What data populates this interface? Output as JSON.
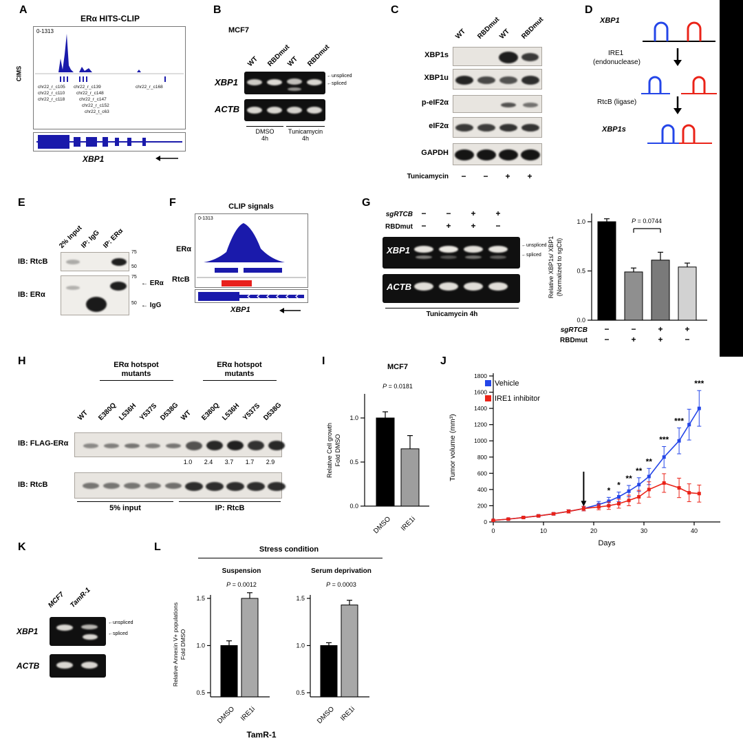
{
  "panels": {
    "A": {
      "letter": "A",
      "title": "ERα HITS-CLIP",
      "range": "0-1313",
      "axis": "CIMS",
      "cims": [
        "chr22_r_c105",
        "chr22_r_c110",
        "chr22_r_c118",
        "chr22_r_c139",
        "chr22_r_c148",
        "chr22_r_c147",
        "chr22_r_c152",
        "chr22_t_c63",
        "chr22_r_c168"
      ],
      "gene": "XBP1"
    },
    "B": {
      "letter": "B",
      "cell_line": "MCF7",
      "lanes": [
        "WT",
        "RBDmut",
        "WT",
        "RBDmut"
      ],
      "row1": "XBP1",
      "row2": "ACTB",
      "arrow_unspliced": "←unspliced",
      "arrow_spliced": "←spliced",
      "cond1": "DMSO",
      "cond1_time": "4h",
      "cond2": "Tunicamycin",
      "cond2_time": "4h"
    },
    "C": {
      "letter": "C",
      "lanes": [
        "WT",
        "RBDmut",
        "WT",
        "RBDmut"
      ],
      "rows": [
        "XBP1s",
        "XBP1u",
        "p-eIF2α",
        "eIF2α",
        "GAPDH"
      ],
      "treatment": "Tunicamycin",
      "signs": [
        "−",
        "−",
        "+",
        "+"
      ]
    },
    "D": {
      "letter": "D",
      "rna": "XBP1",
      "enzyme1": "IRE1",
      "enzyme1_note": "(endonuclease)",
      "enzyme2": "RtcB (ligase)",
      "product": "XBP1s"
    },
    "E": {
      "letter": "E",
      "lanes": [
        "2% Input",
        "IP: IgG",
        "IP: ERα"
      ],
      "blot1": "IB: RtcB",
      "blot2": "IB: ERα",
      "mw": [
        "75",
        "50"
      ],
      "arrow1": "← ERα",
      "arrow2": "← IgG"
    },
    "F": {
      "letter": "F",
      "title": "CLIP signals",
      "range": "0-1313",
      "track1": "ERα",
      "track2": "RtcB",
      "gene": "XBP1"
    },
    "G": {
      "letter": "G",
      "row_sg": "sgRTCB",
      "sg_signs": [
        "−",
        "−",
        "+",
        "+"
      ],
      "row_rbd": "RBDmut",
      "rbd_signs": [
        "−",
        "+",
        "+",
        "−"
      ],
      "gel_row1": "XBP1",
      "gel_row2": "ACTB",
      "arrow_unspliced": "←unspliced",
      "arrow_spliced": "←spliced",
      "condition": "Tunicamycin 4h"
    },
    "H": {
      "letter": "H",
      "group_title_line1": "ERα hotspot",
      "group_title_line2": "mutants",
      "lanes": [
        "WT",
        "E380Q",
        "L536H",
        "Y537S",
        "D538G",
        "WT",
        "E380Q",
        "L536H",
        "Y537S",
        "D538G"
      ],
      "blot1": "IB: FLAG-ERα",
      "blot2": "IB: RtcB",
      "quant": [
        "1.0",
        "2.4",
        "3.7",
        "1.7",
        "2.9"
      ],
      "group1": "5% input",
      "group2": "IP: RtcB"
    },
    "I": {
      "letter": "I"
    },
    "J": {
      "letter": "J"
    },
    "K": {
      "letter": "K",
      "lanes": [
        "MCF7",
        "TamR-1"
      ],
      "row1": "XBP1",
      "row2": "ACTB",
      "arrow_unspliced": "←unspliced",
      "arrow_spliced": "←spliced"
    },
    "L": {
      "letter": "L",
      "header": "Stress condition",
      "footer": "TamR-1"
    }
  },
  "chart_data": [
    {
      "id": "G_bar",
      "type": "bar",
      "ylabel_line1": "Relative XBP1s/ XBP1",
      "ylabel_line2": "(Normalized to sgCtl)",
      "annotation": "P = 0.0744",
      "yticks": [
        "1.0",
        "0.5",
        "0.0"
      ],
      "ylim": [
        0,
        1.1
      ],
      "values": [
        1.0,
        0.49,
        0.61,
        0.54
      ],
      "errors": [
        0.03,
        0.04,
        0.08,
        0.04
      ],
      "bar_colors": [
        "#000000",
        "#8f8f8f",
        "#7a7a7a",
        "#d2d2d2"
      ],
      "x_rows": [
        {
          "label": "sgRTCB",
          "signs": [
            "−",
            "−",
            "+",
            "+"
          ]
        },
        {
          "label": "RBDmut",
          "signs": [
            "−",
            "+",
            "+",
            "−"
          ]
        }
      ]
    },
    {
      "id": "I_bar",
      "type": "bar",
      "title": "MCF7",
      "ylabel_line1": "Relative Cell growth",
      "ylabel_line2": "Fold DMSO",
      "annotation": "P = 0.0181",
      "yticks": [
        "1.0",
        "0.5",
        "0.0"
      ],
      "ylim": [
        0,
        1.25
      ],
      "categories": [
        "DMSO",
        "IRE1i"
      ],
      "values": [
        1.0,
        0.65
      ],
      "errors": [
        0.07,
        0.15
      ],
      "bar_colors": [
        "#000000",
        "#9e9e9e"
      ]
    },
    {
      "id": "J_line",
      "type": "line",
      "ylabel": "Tumor volume (mm³)",
      "xlabel": "Days",
      "ylim": [
        0,
        1800
      ],
      "ytick_step": 200,
      "xticks": [
        0,
        10,
        20,
        30,
        40
      ],
      "x": [
        0,
        3,
        6,
        9,
        12,
        15,
        18,
        21,
        23,
        25,
        27,
        29,
        31,
        34,
        37,
        39,
        41
      ],
      "series": [
        {
          "name": "Vehicle",
          "color": "#2446e8",
          "values": [
            20,
            35,
            55,
            75,
            100,
            130,
            165,
            215,
            255,
            310,
            380,
            460,
            560,
            800,
            1000,
            1200,
            1400
          ],
          "errors": [
            5,
            8,
            10,
            12,
            15,
            20,
            28,
            38,
            48,
            58,
            70,
            85,
            100,
            130,
            160,
            190,
            220
          ]
        },
        {
          "name": "IRE1 inhibitor",
          "color": "#ea2318",
          "values": [
            20,
            35,
            55,
            75,
            100,
            130,
            165,
            185,
            200,
            225,
            265,
            310,
            400,
            480,
            420,
            360,
            350
          ],
          "errors": [
            5,
            8,
            10,
            12,
            15,
            20,
            28,
            35,
            45,
            55,
            65,
            80,
            95,
            115,
            120,
            110,
            105
          ]
        }
      ],
      "significance": [
        {
          "day": 23,
          "mark": "*"
        },
        {
          "day": 25,
          "mark": "*"
        },
        {
          "day": 27,
          "mark": "**"
        },
        {
          "day": 29,
          "mark": "**"
        },
        {
          "day": 31,
          "mark": "**"
        },
        {
          "day": 34,
          "mark": "***"
        },
        {
          "day": 37,
          "mark": "***"
        },
        {
          "day": 41,
          "mark": "***"
        }
      ],
      "treatment_arrow_day": 18
    },
    {
      "id": "L_bars",
      "type": "bar",
      "ylabel_line1": "Relative Annexin V+ populations",
      "ylabel_line2": "Fold DMSO",
      "yticks": [
        "1.5",
        "1.0",
        "0.5"
      ],
      "categories": [
        "DMSO",
        "IRE1i"
      ],
      "bar_colors": [
        "#000000",
        "#a8a8a8"
      ],
      "charts": [
        {
          "title": "Suspension",
          "annotation": "P = 0.0012",
          "values": [
            1.0,
            1.5
          ],
          "errors": [
            0.05,
            0.06
          ]
        },
        {
          "title": "Serum deprivation",
          "annotation": "P = 0.0003",
          "values": [
            1.0,
            1.43
          ],
          "errors": [
            0.03,
            0.05
          ]
        }
      ]
    }
  ]
}
